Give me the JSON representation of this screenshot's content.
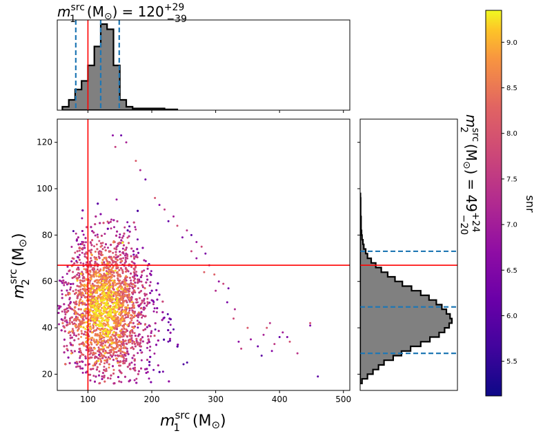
{
  "chart_data": {
    "type": "scatter",
    "title_top": {
      "var": "m",
      "sup": "src",
      "sub": "1",
      "unit": "(M",
      "sun": "⊙",
      "unit_end": ")",
      "eq": "= 120",
      "err_plus": "+29",
      "err_minus": "−39"
    },
    "title_right": {
      "var": "m",
      "sup": "src",
      "sub": "2",
      "unit": "(M",
      "sun": "⊙",
      "unit_end": ")",
      "eq": "= 49",
      "err_plus": "+24",
      "err_minus": "−20"
    },
    "xlabel": {
      "var": "m",
      "sup": "src",
      "sub": "1",
      "unit": "(M",
      "sun": "⊙",
      "unit_end": ")"
    },
    "ylabel": {
      "var": "m",
      "sup": "src",
      "sub": "2",
      "unit": "(M",
      "sun": "⊙",
      "unit_end": ")"
    },
    "colorbar_label": "snr",
    "xlim": [
      52,
      510
    ],
    "ylim": [
      13,
      130
    ],
    "xticks": [
      "100",
      "200",
      "300",
      "400",
      "500"
    ],
    "yticks": [
      "20",
      "40",
      "60",
      "80",
      "100",
      "120"
    ],
    "colorbar_lim": [
      5.12,
      9.35
    ],
    "colorbar_ticks": [
      "5.5",
      "6.0",
      "6.5",
      "7.0",
      "7.5",
      "8.0",
      "8.5",
      "9.0"
    ],
    "colormap": "plasma",
    "injection": {
      "m1": 100,
      "m2": 67,
      "color": "#ff0000"
    },
    "quantile_color": "#1f77b4",
    "hist_fill": "#808080",
    "m1_quantiles": [
      81,
      120,
      149
    ],
    "m2_quantiles": [
      29,
      49,
      73
    ],
    "m1_hist": {
      "edges": [
        60,
        70,
        80,
        90,
        100,
        110,
        120,
        130,
        140,
        150,
        160,
        170,
        180,
        190,
        200,
        210,
        220,
        230,
        240
      ],
      "density": [
        0.04,
        0.12,
        0.24,
        0.34,
        0.52,
        0.74,
        1.0,
        0.94,
        0.52,
        0.12,
        0.04,
        0.02,
        0.02,
        0.02,
        0.02,
        0.02,
        0.01,
        0.01
      ]
    },
    "m2_hist": {
      "edges": [
        16,
        18,
        20,
        22,
        24,
        26,
        28,
        30,
        32,
        34,
        36,
        38,
        40,
        42,
        44,
        46,
        48,
        50,
        52,
        54,
        56,
        58,
        60,
        62,
        64,
        66,
        68,
        70,
        72,
        74,
        76,
        78,
        80,
        82,
        84,
        86,
        88,
        90,
        92,
        94,
        96,
        98
      ],
      "density": [
        0.02,
        0.08,
        0.14,
        0.2,
        0.26,
        0.36,
        0.45,
        0.55,
        0.66,
        0.76,
        0.86,
        0.92,
        0.97,
        1.0,
        0.98,
        0.94,
        0.89,
        0.83,
        0.75,
        0.66,
        0.56,
        0.46,
        0.38,
        0.3,
        0.23,
        0.17,
        0.12,
        0.08,
        0.06,
        0.04,
        0.03,
        0.02,
        0.015,
        0.01,
        0.01,
        0.01,
        0.005,
        0.005,
        0.005,
        0.005,
        0.003
      ]
    },
    "sample_region": {
      "m1_min": 52,
      "m2_min": 16,
      "diag_start": [
        52,
        57
      ],
      "diag_end": [
        96,
        101
      ]
    },
    "tail_points": [
      [
        460,
        19
      ],
      [
        428,
        29
      ],
      [
        448,
        41
      ],
      [
        448,
        42
      ],
      [
        405,
        38
      ],
      [
        400,
        36
      ],
      [
        392,
        33
      ],
      [
        388,
        30
      ],
      [
        380,
        40
      ],
      [
        375,
        37
      ],
      [
        366,
        32
      ],
      [
        340,
        31
      ],
      [
        336,
        34
      ],
      [
        350,
        40
      ],
      [
        330,
        48
      ],
      [
        320,
        57
      ],
      [
        312,
        59
      ],
      [
        305,
        60
      ],
      [
        298,
        63
      ],
      [
        290,
        67
      ],
      [
        284,
        72
      ],
      [
        278,
        75
      ],
      [
        270,
        77
      ],
      [
        262,
        80
      ],
      [
        255,
        82
      ],
      [
        248,
        79
      ],
      [
        240,
        84
      ],
      [
        234,
        88
      ],
      [
        226,
        86
      ],
      [
        220,
        91
      ],
      [
        212,
        93
      ],
      [
        205,
        96
      ],
      [
        160,
        120
      ],
      [
        152,
        123
      ],
      [
        143,
        118
      ],
      [
        139,
        123
      ],
      [
        175,
        112
      ],
      [
        182,
        108
      ],
      [
        190,
        104
      ],
      [
        262,
        73
      ],
      [
        270,
        70
      ],
      [
        282,
        64
      ],
      [
        300,
        56
      ],
      [
        318,
        51
      ],
      [
        328,
        44
      ],
      [
        355,
        35
      ],
      [
        372,
        28
      ],
      [
        385,
        42
      ],
      [
        412,
        36
      ],
      [
        416,
        34
      ]
    ]
  }
}
